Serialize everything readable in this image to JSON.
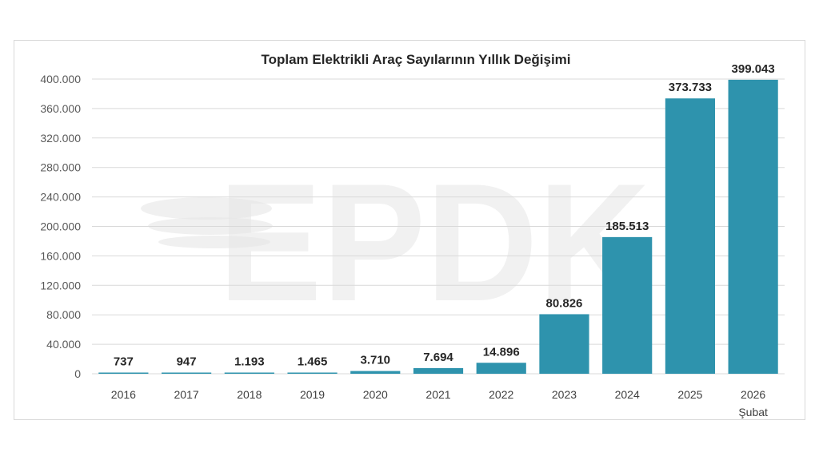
{
  "chart_data": {
    "type": "bar",
    "title": "Toplam Elektrikli Araç Sayılarının Yıllık Değişimi",
    "categories": [
      "2016",
      "2017",
      "2018",
      "2019",
      "2020",
      "2021",
      "2022",
      "2023",
      "2024",
      "2025",
      "2026"
    ],
    "category_sublabels": [
      "",
      "",
      "",
      "",
      "",
      "",
      "",
      "",
      "",
      "",
      "Şubat"
    ],
    "values": [
      737,
      947,
      1193,
      1465,
      3710,
      7694,
      14896,
      80826,
      185513,
      373733,
      399043
    ],
    "value_labels": [
      "737",
      "947",
      "1.193",
      "1.465",
      "3.710",
      "7.694",
      "14.896",
      "80.826",
      "185.513",
      "373.733",
      "399.043"
    ],
    "ylim": [
      0,
      400000
    ],
    "ytick_values": [
      0,
      40000,
      80000,
      120000,
      160000,
      200000,
      240000,
      280000,
      320000,
      360000,
      400000
    ],
    "ytick_labels": [
      "0",
      "40.000",
      "80.000",
      "120.000",
      "160.000",
      "200.000",
      "240.000",
      "280.000",
      "320.000",
      "360.000",
      "400.000"
    ],
    "xlabel": "",
    "ylabel": "",
    "grid": true,
    "legend": "none",
    "bar_color": "#2e93ad",
    "watermark": "EPDK"
  }
}
